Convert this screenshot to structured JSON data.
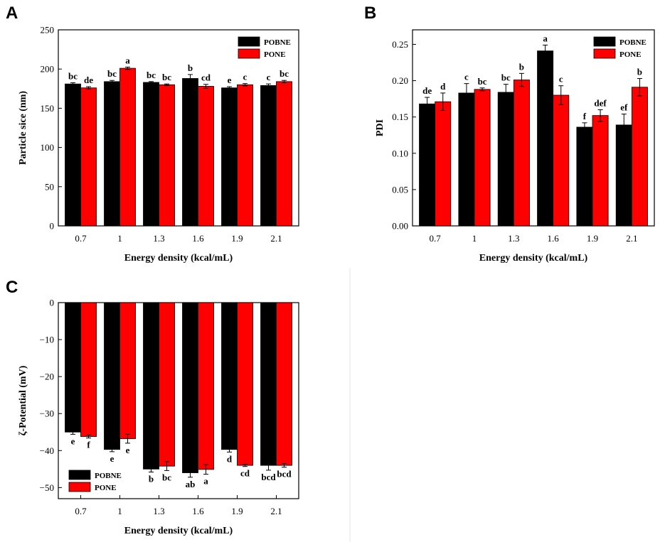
{
  "colors": {
    "POBNE": "#000000",
    "PONE": "#ff0000",
    "error_bar": "#000000",
    "axis": "#000000"
  },
  "chart_data": [
    {
      "panel": "A",
      "type": "bar",
      "xlabel": "Energy density (kcal/mL)",
      "ylabel": "Particle sice (nm)",
      "ylim": [
        0,
        250
      ],
      "yticks": [
        0,
        50,
        100,
        150,
        200,
        250
      ],
      "ytick_labels": [
        "0",
        "50",
        "100",
        "150",
        "200",
        "250"
      ],
      "categories": [
        "0.7",
        "1",
        "1.3",
        "1.6",
        "1.9",
        "2.1"
      ],
      "legend": "top-right",
      "series": [
        {
          "name": "POBNE",
          "values": [
            181,
            184,
            183,
            188,
            176,
            179
          ],
          "errors": [
            1.5,
            1.5,
            1.0,
            5,
            1.5,
            2
          ],
          "labels": [
            "bc",
            "bc",
            "bc",
            "b",
            "e",
            "c"
          ]
        },
        {
          "name": "PONE",
          "values": [
            176,
            201,
            180,
            178,
            180,
            184
          ],
          "errors": [
            1.5,
            1.5,
            1.0,
            2.5,
            1.5,
            1.5
          ],
          "labels": [
            "de",
            "a",
            "bc",
            "cd",
            "c",
            "bc"
          ]
        }
      ]
    },
    {
      "panel": "B",
      "type": "bar",
      "xlabel": "Energy density (kcal/mL)",
      "ylabel": "PDI",
      "ylim": [
        0,
        0.27
      ],
      "yticks": [
        0,
        0.05,
        0.1,
        0.15,
        0.2,
        0.25
      ],
      "ytick_labels": [
        "0.00",
        "0.05",
        "0.10",
        "0.15",
        "0.20",
        "0.25"
      ],
      "categories": [
        "0.7",
        "1",
        "1.3",
        "1.6",
        "1.9",
        "2.1"
      ],
      "legend": "top-right",
      "series": [
        {
          "name": "POBNE",
          "values": [
            0.168,
            0.183,
            0.184,
            0.241,
            0.136,
            0.139
          ],
          "errors": [
            0.009,
            0.013,
            0.011,
            0.008,
            0.006,
            0.015
          ],
          "labels": [
            "de",
            "c",
            "bc",
            "a",
            "f",
            "ef"
          ]
        },
        {
          "name": "PONE",
          "values": [
            0.171,
            0.188,
            0.201,
            0.18,
            0.152,
            0.191
          ],
          "errors": [
            0.012,
            0.002,
            0.009,
            0.013,
            0.008,
            0.012
          ],
          "labels": [
            "d",
            "bc",
            "b",
            "c",
            "def",
            "b"
          ]
        }
      ]
    },
    {
      "panel": "C",
      "type": "bar",
      "xlabel": "Energy density (kcal/mL)",
      "ylabel": "ζ-Potential (mV)",
      "ylim": [
        -53,
        0
      ],
      "yticks": [
        0,
        -10,
        -20,
        -30,
        -40,
        -50
      ],
      "ytick_labels": [
        "0",
        "−10",
        "−20",
        "−30",
        "−40",
        "−50"
      ],
      "categories": [
        "0.7",
        "1",
        "1.3",
        "1.6",
        "1.9",
        "2.1"
      ],
      "legend": "bottom-left",
      "series": [
        {
          "name": "POBNE",
          "values": [
            -35,
            -39.7,
            -45,
            -46,
            -39.7,
            -44
          ],
          "errors": [
            0.6,
            0.6,
            0.8,
            1.2,
            0.7,
            1.3
          ],
          "labels": [
            "e",
            "e",
            "b",
            "ab",
            "d",
            "bcd"
          ]
        },
        {
          "name": "PONE",
          "values": [
            -36.2,
            -36.8,
            -44.2,
            -45.1,
            -44,
            -44
          ],
          "errors": [
            0.4,
            1.2,
            1.2,
            1.3,
            0.3,
            0.5
          ],
          "labels": [
            "f",
            "e",
            "bc",
            "a",
            "cd",
            "bcd"
          ]
        }
      ]
    }
  ]
}
